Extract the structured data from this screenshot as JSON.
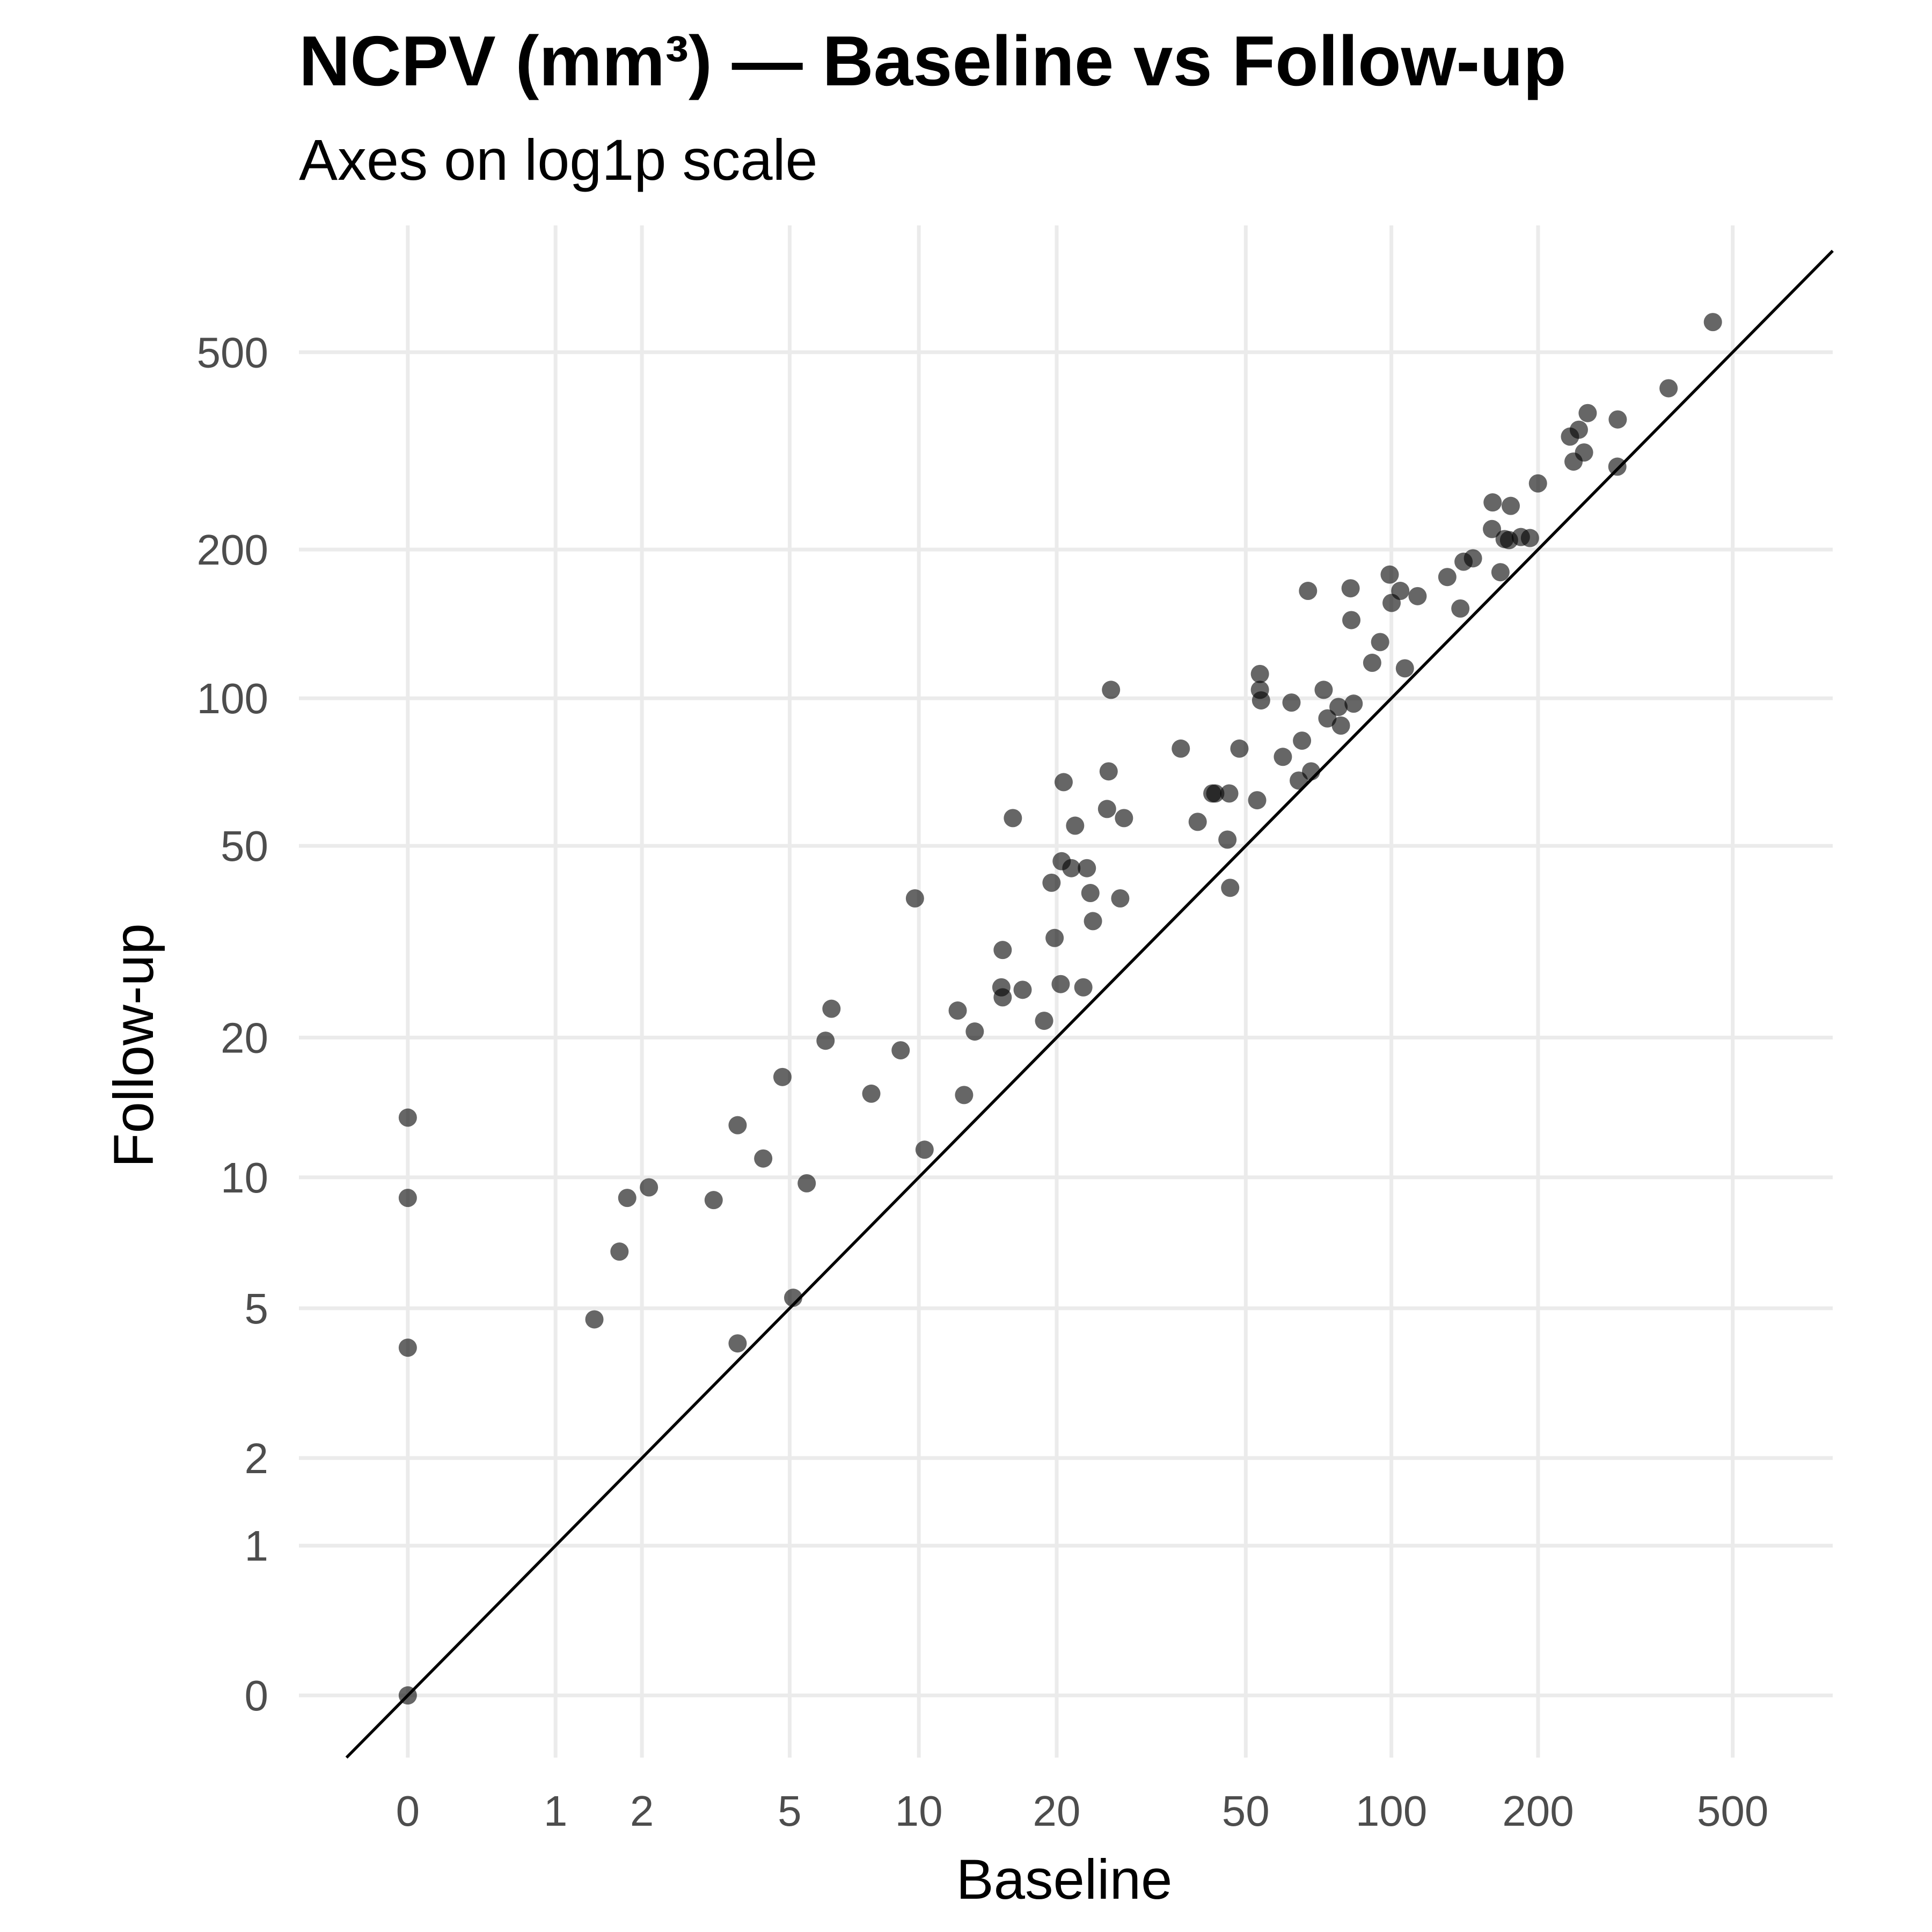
{
  "chart_data": {
    "type": "scatter",
    "title": "NCPV (mm³) — Baseline vs Follow-up",
    "subtitle": "Axes on log1p scale",
    "xlabel": "Baseline",
    "ylabel": "Follow-up",
    "scale": "log1p",
    "xlim": [
      -0.4,
      800
    ],
    "ylim": [
      -0.25,
      900
    ],
    "x_ticks": [
      0,
      1,
      2,
      5,
      10,
      20,
      50,
      100,
      200,
      500
    ],
    "y_ticks": [
      0,
      1,
      2,
      5,
      10,
      20,
      50,
      100,
      200,
      500
    ],
    "grid": true,
    "reference_line": "y = x",
    "point_color": "#000000",
    "point_opacity": 0.6,
    "points": [
      [
        0,
        0
      ],
      [
        0,
        4
      ],
      [
        0,
        9
      ],
      [
        0,
        13.5
      ],
      [
        1.4,
        4.7
      ],
      [
        1.7,
        6.8
      ],
      [
        1.8,
        9
      ],
      [
        2.1,
        9.5
      ],
      [
        3.2,
        8.9
      ],
      [
        3.7,
        4.1
      ],
      [
        3.7,
        13
      ],
      [
        4.3,
        11
      ],
      [
        4.8,
        16.5
      ],
      [
        5.1,
        5.3
      ],
      [
        5.5,
        9.7
      ],
      [
        6.1,
        19.7
      ],
      [
        6.3,
        23
      ],
      [
        7.8,
        15.2
      ],
      [
        9.1,
        18.8
      ],
      [
        9.8,
        39
      ],
      [
        10.3,
        11.5
      ],
      [
        12.2,
        22.8
      ],
      [
        12.6,
        15.1
      ],
      [
        13.3,
        20.6
      ],
      [
        15.2,
        25.5
      ],
      [
        15.3,
        24.3
      ],
      [
        15.3,
        30.5
      ],
      [
        16.1,
        57
      ],
      [
        16.9,
        25.2
      ],
      [
        18.8,
        21.7
      ],
      [
        19.5,
        42
      ],
      [
        19.8,
        32.3
      ],
      [
        20.4,
        25.9
      ],
      [
        20.5,
        46.5
      ],
      [
        20.7,
        67.5
      ],
      [
        21.5,
        45
      ],
      [
        21.9,
        55
      ],
      [
        22.8,
        25.5
      ],
      [
        23.2,
        45
      ],
      [
        23.6,
        40
      ],
      [
        23.9,
        35
      ],
      [
        25.6,
        59.5
      ],
      [
        25.8,
        71
      ],
      [
        26.1,
        104
      ],
      [
        27.3,
        39
      ],
      [
        27.8,
        57
      ],
      [
        36.6,
        79
      ],
      [
        39.7,
        56
      ],
      [
        42.6,
        64
      ],
      [
        43.2,
        64
      ],
      [
        45.8,
        51.5
      ],
      [
        46.2,
        64
      ],
      [
        46.4,
        41
      ],
      [
        48.5,
        79
      ],
      [
        52.8,
        62
      ],
      [
        53.5,
        104
      ],
      [
        53.5,
        112
      ],
      [
        53.8,
        99
      ],
      [
        59.7,
        76
      ],
      [
        62.2,
        98
      ],
      [
        64.4,
        68
      ],
      [
        65.4,
        82
      ],
      [
        67.3,
        165
      ],
      [
        68.3,
        71
      ],
      [
        72.5,
        104
      ],
      [
        73.8,
        91
      ],
      [
        77.8,
        96
      ],
      [
        78.7,
        88
      ],
      [
        82.4,
        167
      ],
      [
        82.7,
        144
      ],
      [
        83.6,
        97.5
      ],
      [
        91.3,
        118
      ],
      [
        94.8,
        130
      ],
      [
        99.2,
        178
      ],
      [
        100.1,
        156
      ],
      [
        104.3,
        165
      ],
      [
        106.6,
        115
      ],
      [
        113.2,
        161
      ],
      [
        130.3,
        176
      ],
      [
        138.6,
        152
      ],
      [
        140.7,
        189
      ],
      [
        147.1,
        192
      ],
      [
        160.9,
        220
      ],
      [
        161.4,
        249
      ],
      [
        167.5,
        180
      ],
      [
        170.8,
        210
      ],
      [
        174.4,
        209
      ],
      [
        175.8,
        245
      ],
      [
        184.4,
        212
      ],
      [
        192.5,
        211
      ],
      [
        199.9,
        272
      ],
      [
        232.5,
        338
      ],
      [
        236.4,
        301
      ],
      [
        242.4,
        349
      ],
      [
        248.4,
        314
      ],
      [
        252.7,
        377
      ],
      [
        290.6,
        294
      ],
      [
        291.1,
        366
      ],
      [
        369.8,
        423
      ],
      [
        455.5,
        575
      ]
    ]
  }
}
